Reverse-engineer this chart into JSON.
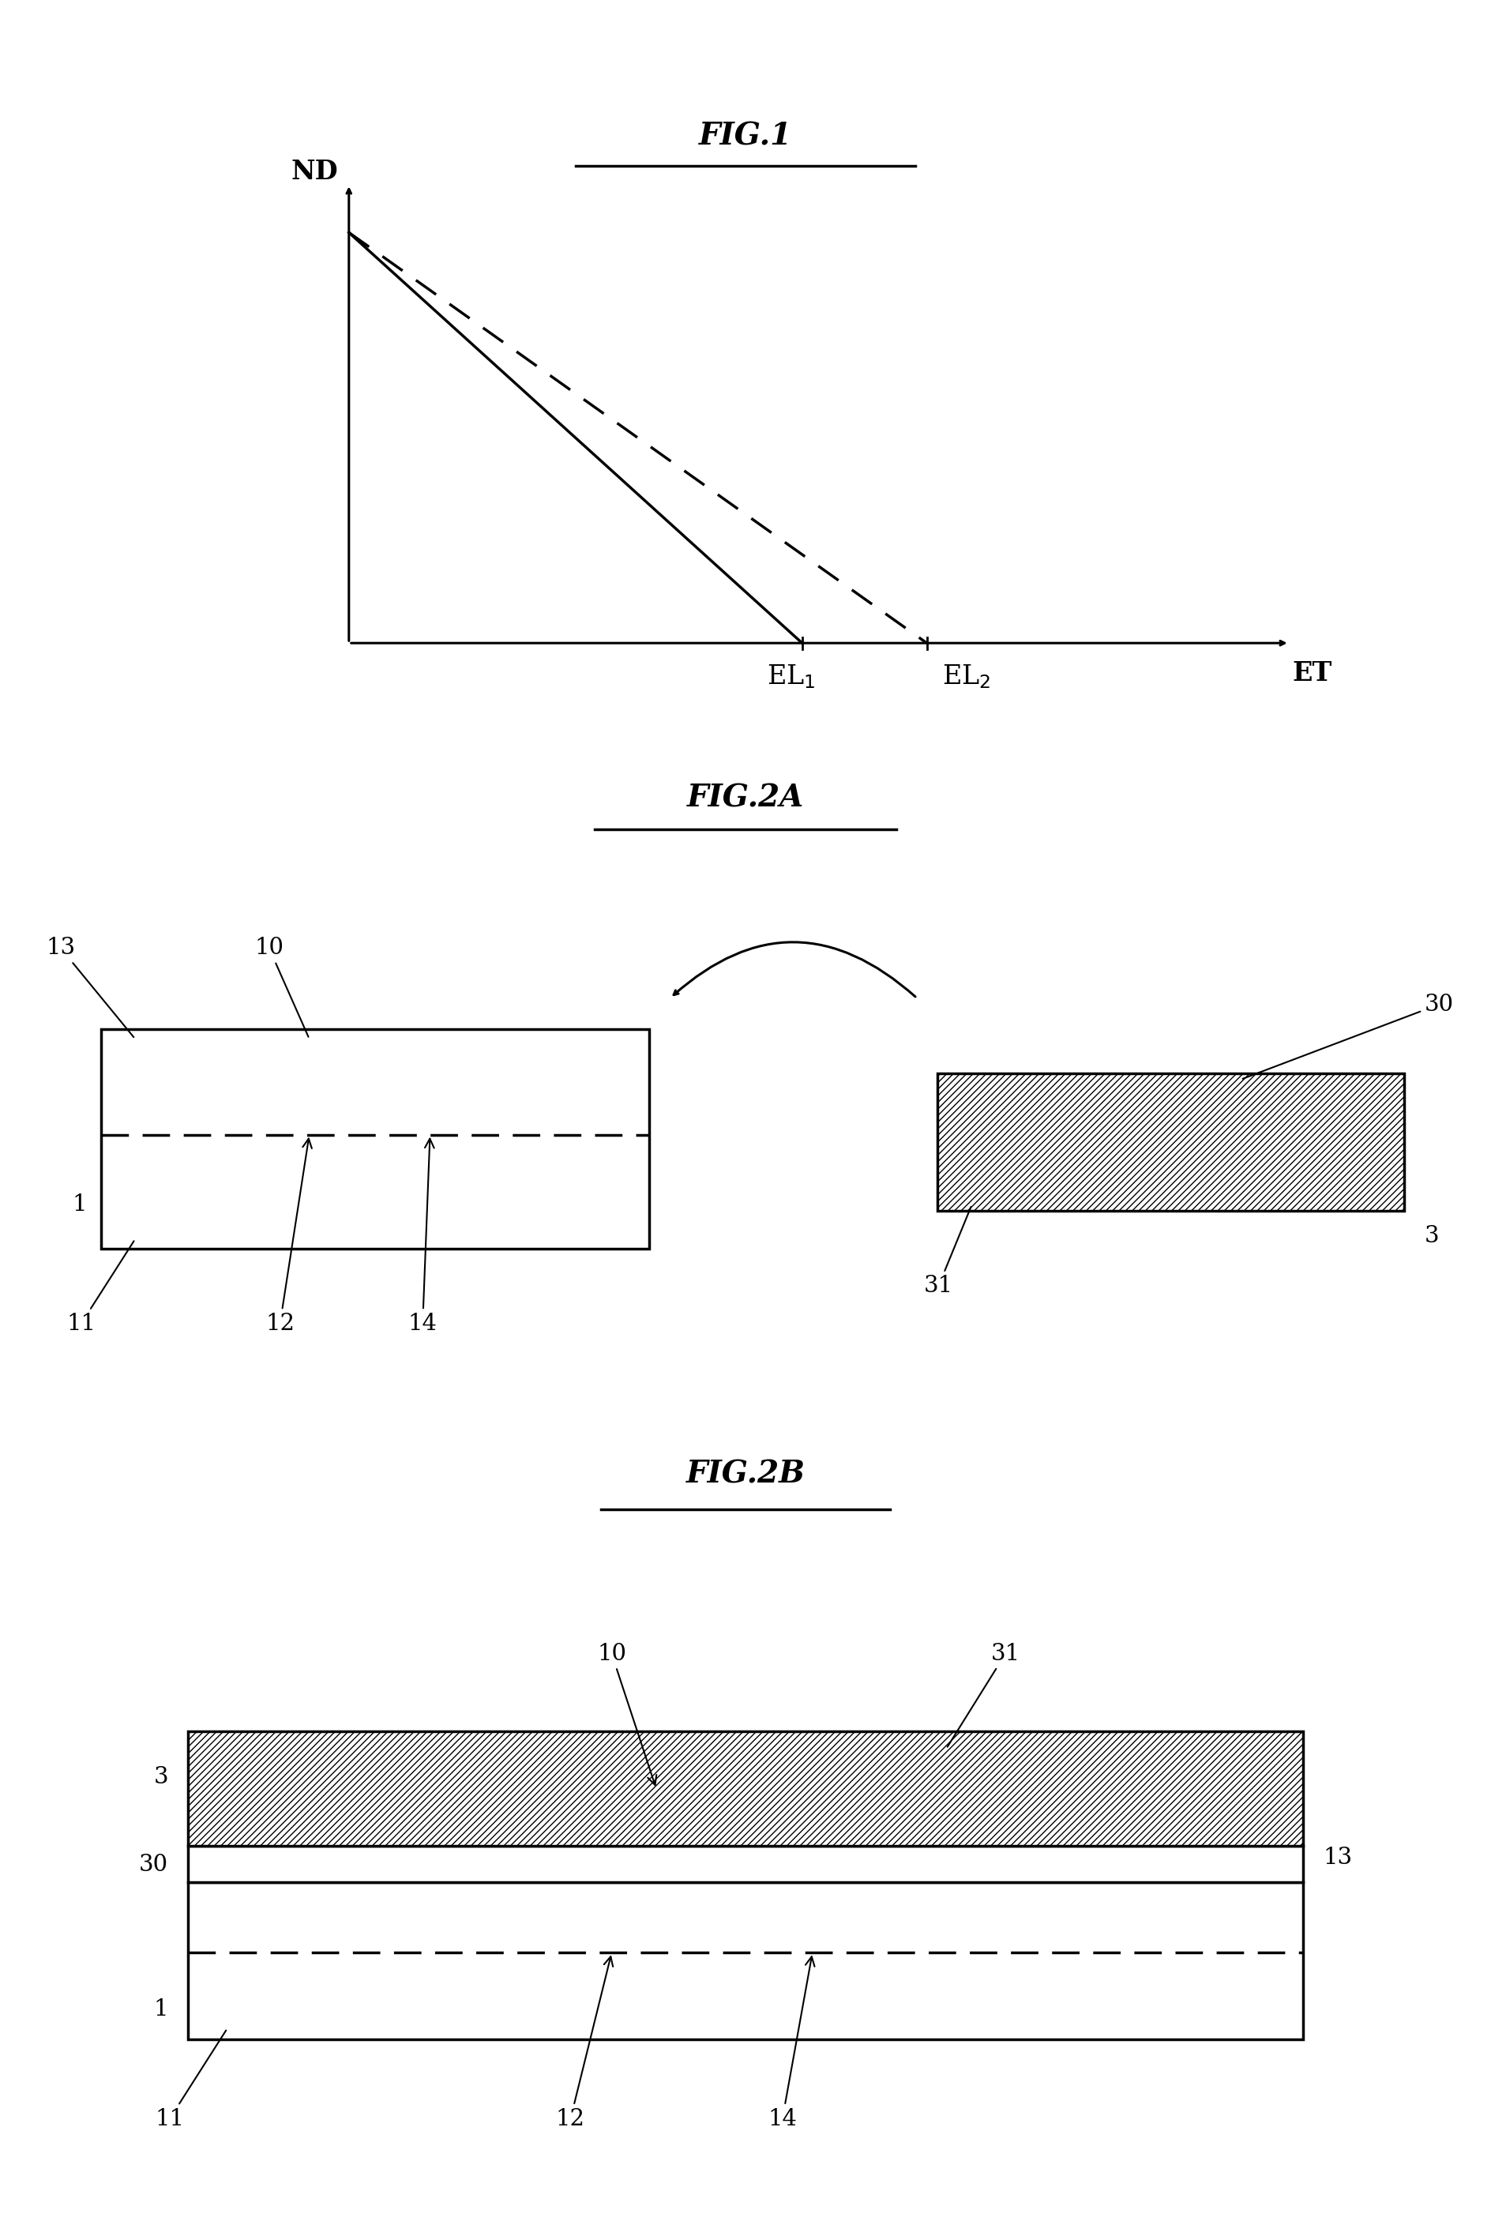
{
  "fig_background": "#ffffff",
  "fig1_title": "FIG.1",
  "fig2a_title": "FIG.2A",
  "fig2b_title": "FIG.2B",
  "label_fontsize": 24,
  "title_fontsize": 28,
  "annotation_fontsize": 21,
  "subscript_fontsize": 18
}
